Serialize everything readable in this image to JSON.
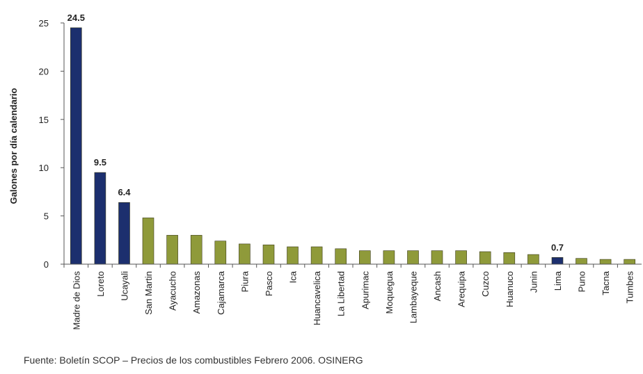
{
  "chart_data": {
    "type": "bar",
    "title": "",
    "xlabel": "",
    "ylabel": "Galones por día calendario",
    "ylim": [
      0,
      25
    ],
    "yticks": [
      0,
      5,
      10,
      15,
      20,
      25
    ],
    "grid": false,
    "categories": [
      "Madre de Dios",
      "Loreto",
      "Ucayali",
      "San Martin",
      "Ayacucho",
      "Amazonas",
      "Cajamarca",
      "Piura",
      "Pasco",
      "Ica",
      "Huancavelica",
      "La Libertad",
      "Apurimac",
      "Moquegua",
      "Lambayeque",
      "Ancash",
      "Arequipa",
      "Cuzco",
      "Huanuco",
      "Junin",
      "Lima",
      "Puno",
      "Tacna",
      "Tumbes"
    ],
    "values": [
      24.5,
      9.5,
      6.4,
      4.8,
      3.0,
      3.0,
      2.4,
      2.1,
      2.0,
      1.8,
      1.8,
      1.6,
      1.4,
      1.4,
      1.4,
      1.4,
      1.4,
      1.3,
      1.2,
      1.0,
      0.7,
      0.6,
      0.5,
      0.5
    ],
    "data_labels": [
      {
        "category": "Madre de Dios",
        "text": "24.5"
      },
      {
        "category": "Loreto",
        "text": "9.5"
      },
      {
        "category": "Ucayali",
        "text": "6.4"
      },
      {
        "category": "Lima",
        "text": "0.7"
      }
    ],
    "highlighted": [
      "Madre de Dios",
      "Loreto",
      "Ucayali",
      "Lima"
    ],
    "colors": {
      "highlight": "#1c2f6e",
      "default": "#8f9a3a",
      "outline": "#3a3a1a"
    }
  },
  "source": "Fuente: Boletín SCOP – Precios de los combustibles Febrero 2006. OSINERG"
}
